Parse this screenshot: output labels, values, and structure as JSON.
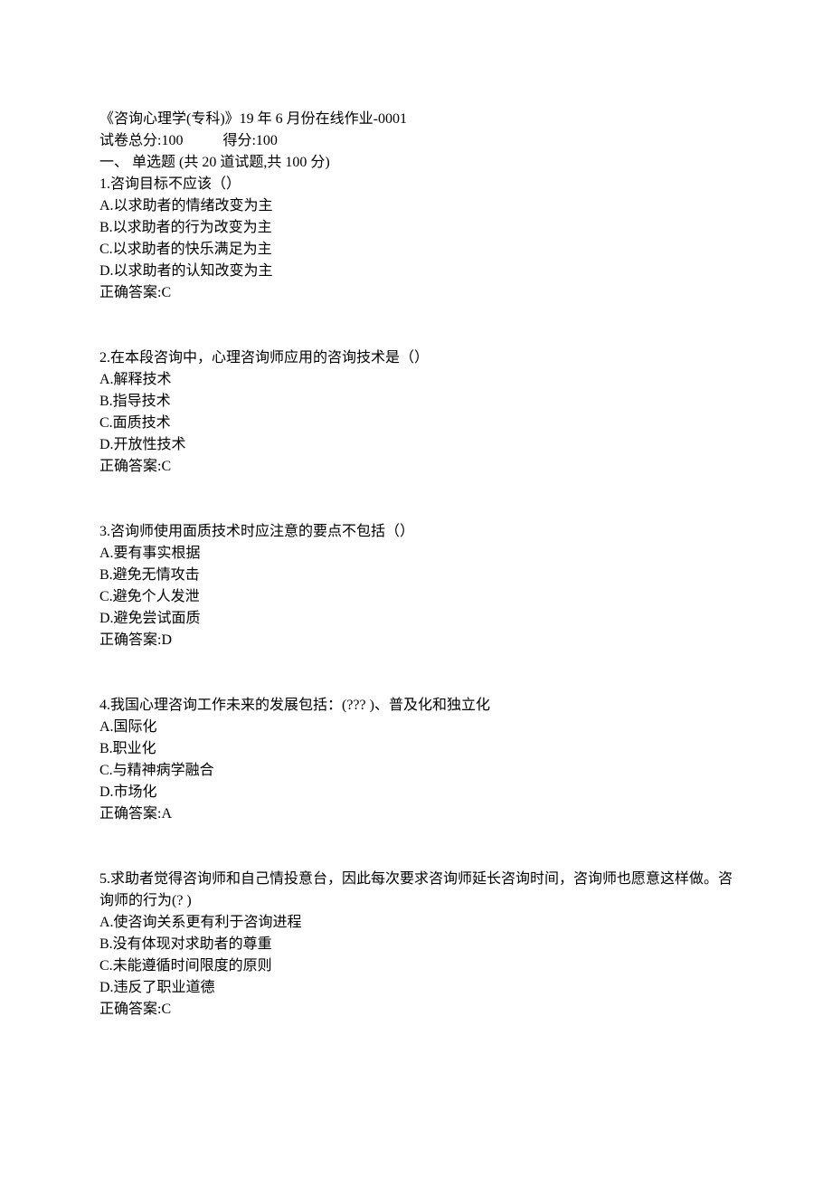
{
  "header": {
    "title": "《咨询心理学(专科)》19 年 6 月份在线作业-0001",
    "total_label": "试卷总分:100",
    "score_label": "得分:100",
    "section": "一、 单选题 (共 20 道试题,共 100 分)"
  },
  "questions": [
    {
      "stem": "1.咨询目标不应该（）",
      "options": [
        "A.以求助者的情绪改变为主",
        "B.以求助者的行为改变为主",
        "C.以求助者的快乐满足为主",
        "D.以求助者的认知改变为主"
      ],
      "answer": "正确答案:C"
    },
    {
      "stem": "2.在本段咨询中，心理咨询师应用的咨询技术是（）",
      "options": [
        "A.解释技术",
        "B.指导技术",
        "C.面质技术",
        "D.开放性技术"
      ],
      "answer": "正确答案:C"
    },
    {
      "stem": "3.咨询师使用面质技术时应注意的要点不包括（）",
      "options": [
        "A.要有事实根据",
        "B.避免无情攻击",
        "C.避免个人发泄",
        "D.避免尝试面质"
      ],
      "answer": "正确答案:D"
    },
    {
      "stem": "4.我国心理咨询工作未来的发展包括：(??? )、普及化和独立化",
      "options": [
        "A.国际化",
        "B.职业化",
        "C.与精神病学融合",
        "D.市场化"
      ],
      "answer": "正确答案:A"
    },
    {
      "stem": "5.求助者觉得咨询师和自己情投意台，因此每次要求咨询师延长咨询时间，咨询师也愿意这样做。咨询师的行为(? )",
      "options": [
        "A.使咨询关系更有利于咨询进程",
        "B.没有体现对求助者的尊重",
        "C.未能遵循时间限度的原则",
        "D.违反了职业道德"
      ],
      "answer": "正确答案:C"
    }
  ]
}
